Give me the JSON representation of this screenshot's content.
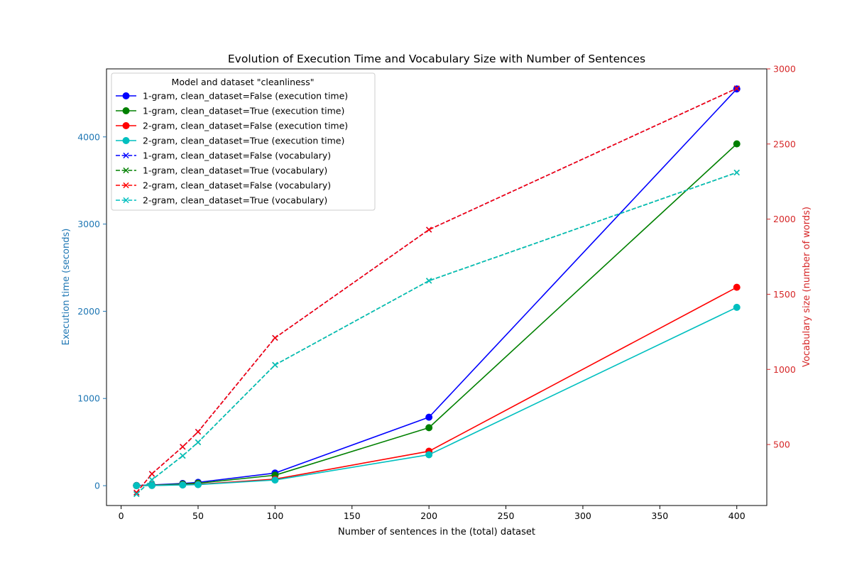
{
  "chart_data": {
    "type": "line",
    "title": "Evolution of Execution Time and Vocabulary Size with Number of Sentences",
    "xlabel": "Number of sentences in the (total) dataset",
    "ylabel_left": "Execution time (seconds)",
    "ylabel_right": "Vocabulary size (number of words)",
    "left_axis_color": "#1f77b4",
    "right_axis_color": "#d62728",
    "xlim": [
      -9.5,
      419.5
    ],
    "ylim_left": [
      -227.6,
      4780
    ],
    "ylim_right": [
      94,
      3000
    ],
    "x_ticks": [
      0,
      50,
      100,
      150,
      200,
      250,
      300,
      350,
      400
    ],
    "y_left_ticks": [
      0,
      1000,
      2000,
      3000,
      4000
    ],
    "y_right_ticks": [
      500,
      1000,
      1500,
      2000,
      2500,
      3000
    ],
    "x": [
      10,
      20,
      40,
      50,
      100,
      200,
      400
    ],
    "legend": {
      "title": "Model and dataset \"cleanliness\"",
      "placement": "upper-left"
    },
    "grid": false,
    "series": [
      {
        "name": "1-gram, clean_dataset=False (execution time)",
        "axis": "left",
        "color": "#0000ff",
        "linestyle": "solid",
        "marker": "circle",
        "values": [
          2,
          8,
          25,
          38,
          145,
          785,
          4550
        ]
      },
      {
        "name": "1-gram, clean_dataset=True (execution time)",
        "axis": "left",
        "color": "#008000",
        "linestyle": "solid",
        "marker": "circle",
        "values": [
          1,
          5,
          18,
          28,
          120,
          665,
          3920
        ]
      },
      {
        "name": "2-gram, clean_dataset=False (execution time)",
        "axis": "left",
        "color": "#ff0000",
        "linestyle": "solid",
        "marker": "circle",
        "values": [
          0,
          3,
          10,
          15,
          75,
          395,
          2275
        ]
      },
      {
        "name": "2-gram, clean_dataset=True (execution time)",
        "axis": "left",
        "color": "#00bfbf",
        "linestyle": "solid",
        "marker": "circle",
        "values": [
          0,
          2,
          8,
          12,
          65,
          355,
          2045
        ]
      },
      {
        "name": "1-gram, clean_dataset=False (vocabulary)",
        "axis": "right",
        "color": "#0000ff",
        "linestyle": "dashed",
        "marker": "x",
        "values": [
          180,
          305,
          485,
          585,
          1210,
          1930,
          2870
        ]
      },
      {
        "name": "1-gram, clean_dataset=True (vocabulary)",
        "axis": "right",
        "color": "#008000",
        "linestyle": "dashed",
        "marker": "x",
        "values": [
          170,
          265,
          425,
          515,
          1030,
          1590,
          2310
        ]
      },
      {
        "name": "2-gram, clean_dataset=False (vocabulary)",
        "axis": "right",
        "color": "#ff0000",
        "linestyle": "dashed",
        "marker": "x",
        "values": [
          180,
          305,
          485,
          585,
          1210,
          1930,
          2870
        ]
      },
      {
        "name": "2-gram, clean_dataset=True (vocabulary)",
        "axis": "right",
        "color": "#00bfbf",
        "linestyle": "dashed",
        "marker": "x",
        "values": [
          170,
          265,
          425,
          515,
          1030,
          1590,
          2310
        ]
      }
    ]
  }
}
